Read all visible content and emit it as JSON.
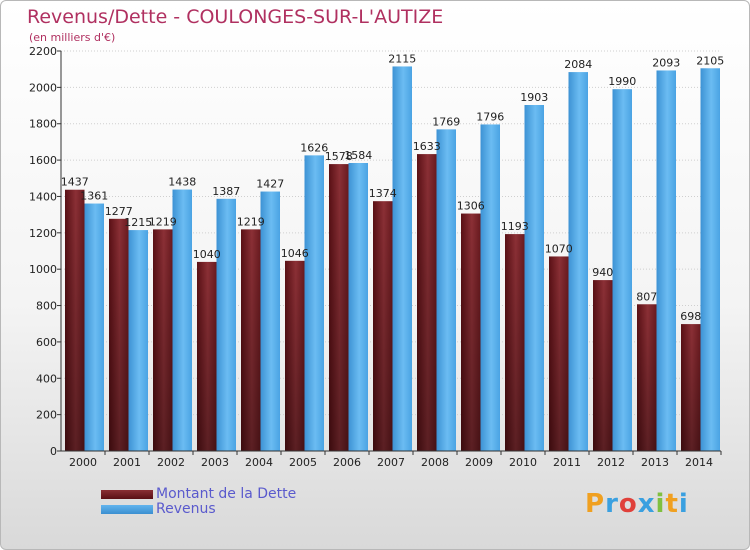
{
  "title": "Revenus/Dette - COULONGES-SUR-L'AUTIZE",
  "subtitle": "(en milliers d'€)",
  "colors": {
    "debt": "#6e1c22",
    "revenue": "#4aa3e3",
    "title": "#b03060",
    "legend": "#5a5acd"
  },
  "legend": {
    "debt_label": "Montant de la Dette",
    "revenue_label": "Revenus"
  },
  "logo": {
    "text": "Proxiti"
  },
  "chart_data": {
    "type": "bar",
    "title": "Revenus/Dette - COULONGES-SUR-L'AUTIZE",
    "ylabel": "(en milliers d'€)",
    "xlabel": "",
    "ylim": [
      0,
      2200
    ],
    "yticks": [
      0,
      200,
      400,
      600,
      800,
      1000,
      1200,
      1400,
      1600,
      1800,
      2000,
      2200
    ],
    "categories": [
      "2000",
      "2001",
      "2002",
      "2003",
      "2004",
      "2005",
      "2006",
      "2007",
      "2008",
      "2009",
      "2010",
      "2011",
      "2012",
      "2013",
      "2014"
    ],
    "series": [
      {
        "name": "Montant de la Dette",
        "values": [
          1437,
          1277,
          1219,
          1040,
          1219,
          1046,
          1578,
          1374,
          1633,
          1306,
          1193,
          1070,
          940,
          807,
          698
        ]
      },
      {
        "name": "Revenus",
        "values": [
          1361,
          1215,
          1438,
          1387,
          1427,
          1626,
          1584,
          2115,
          1769,
          1796,
          1903,
          2084,
          1990,
          2093,
          2105
        ]
      }
    ],
    "grid": true,
    "legend_position": "bottom-left"
  }
}
